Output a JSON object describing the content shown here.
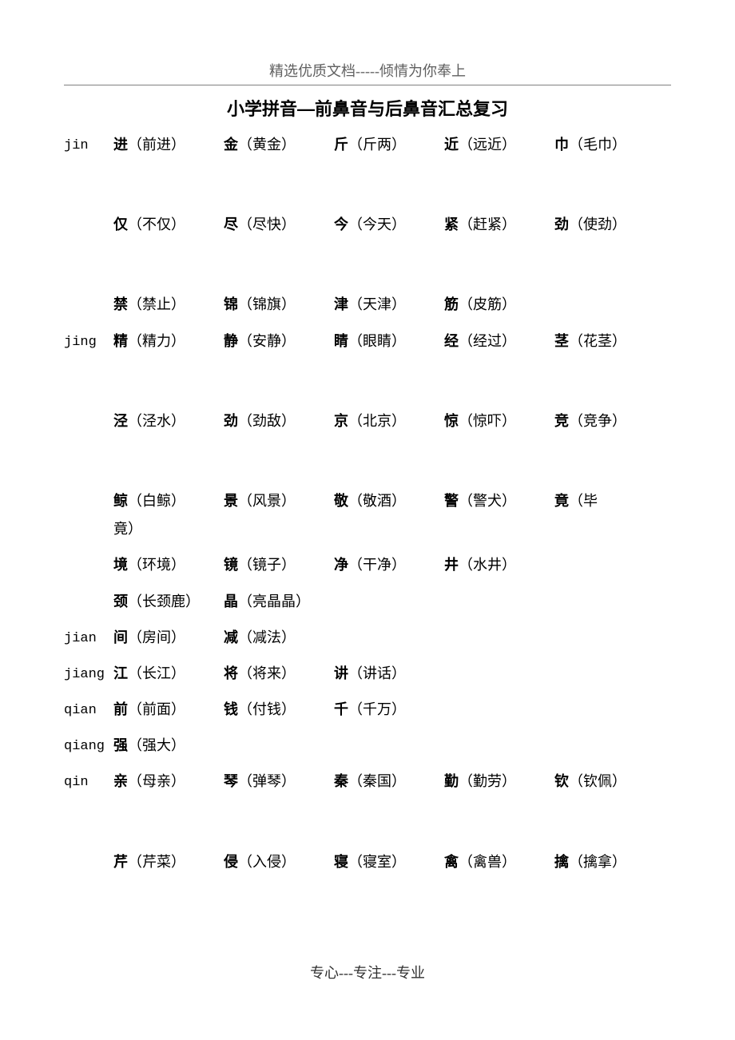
{
  "top_header": "精选优质文档-----倾情为你奉上",
  "title": "小学拼音—前鼻音与后鼻音汇总复习",
  "footer": "专心---专注---专业",
  "rows": [
    {
      "pinyin": "jin",
      "entries": [
        {
          "c": "进",
          "w": "（前进）"
        },
        {
          "c": "金",
          "w": "（黄金）"
        },
        {
          "c": "斤",
          "w": "（斤两）"
        },
        {
          "c": "近",
          "w": "（远近）"
        },
        {
          "c": "巾",
          "w": "（毛巾）"
        }
      ],
      "gap_after": "big"
    },
    {
      "pinyin": "",
      "entries": [
        {
          "c": "仅",
          "w": "（不仅）"
        },
        {
          "c": "尽",
          "w": "（尽快）"
        },
        {
          "c": "今",
          "w": "（今天）"
        },
        {
          "c": "紧",
          "w": "（赶紧）"
        },
        {
          "c": "劲",
          "w": "（使劲）"
        }
      ],
      "gap_after": "big"
    },
    {
      "pinyin": "",
      "entries": [
        {
          "c": "禁",
          "w": "（禁止）"
        },
        {
          "c": "锦",
          "w": "（锦旗）"
        },
        {
          "c": "津",
          "w": "（天津）"
        },
        {
          "c": "筋",
          "w": "（皮筋）"
        }
      ],
      "gap_after": "sm"
    },
    {
      "pinyin": "jing",
      "entries": [
        {
          "c": "精",
          "w": "（精力）"
        },
        {
          "c": "静",
          "w": "（安静）"
        },
        {
          "c": "睛",
          "w": "（眼睛）"
        },
        {
          "c": "经",
          "w": "（经过）"
        },
        {
          "c": "茎",
          "w": "（花茎）"
        }
      ],
      "gap_after": "big"
    },
    {
      "pinyin": "",
      "entries": [
        {
          "c": "泾",
          "w": "（泾水）"
        },
        {
          "c": "劲",
          "w": "（劲敌）"
        },
        {
          "c": "京",
          "w": "（北京）"
        },
        {
          "c": "惊",
          "w": "（惊吓）"
        },
        {
          "c": "竞",
          "w": "（竞争）"
        }
      ],
      "gap_after": "big"
    },
    {
      "pinyin": "",
      "entries": [
        {
          "c": "鲸",
          "w": "（白鲸）"
        },
        {
          "c": "景",
          "w": "（风景）"
        },
        {
          "c": "敬",
          "w": "（敬酒）"
        },
        {
          "c": "警",
          "w": "（警犬）"
        },
        {
          "c": "竟",
          "w": "（毕"
        }
      ],
      "wrap_tail": "竟）",
      "gap_after": "sm"
    },
    {
      "pinyin": "",
      "entries": [
        {
          "c": "境",
          "w": "（环境）"
        },
        {
          "c": "镜",
          "w": "（镜子）"
        },
        {
          "c": "净",
          "w": "（干净）"
        },
        {
          "c": "井",
          "w": "（水井）"
        }
      ],
      "gap_after": "sm"
    },
    {
      "pinyin": "",
      "entries": [
        {
          "c": "颈",
          "w": "（长颈鹿）"
        },
        {
          "c": "晶",
          "w": "（亮晶晶）"
        }
      ],
      "gap_after": "sm"
    },
    {
      "pinyin": "jian",
      "entries": [
        {
          "c": "间",
          "w": "（房间）"
        },
        {
          "c": "减",
          "w": "（减法）"
        }
      ],
      "gap_after": "sm"
    },
    {
      "pinyin": "jiang",
      "entries": [
        {
          "c": "江",
          "w": "（长江）"
        },
        {
          "c": "将",
          "w": "（将来）"
        },
        {
          "c": "讲",
          "w": "（讲话）"
        }
      ],
      "gap_after": "sm"
    },
    {
      "pinyin": "qian",
      "entries": [
        {
          "c": "前",
          "w": "（前面）"
        },
        {
          "c": "钱",
          "w": "（付钱）"
        },
        {
          "c": "千",
          "w": "（千万）"
        }
      ],
      "gap_after": "sm"
    },
    {
      "pinyin": "qiang",
      "entries": [
        {
          "c": "强",
          "w": "（强大）"
        }
      ],
      "gap_after": "sm"
    },
    {
      "pinyin": "qin",
      "entries": [
        {
          "c": "亲",
          "w": "（母亲）"
        },
        {
          "c": "琴",
          "w": "（弹琴）"
        },
        {
          "c": "秦",
          "w": "（秦国）"
        },
        {
          "c": "勤",
          "w": "（勤劳）"
        },
        {
          "c": "钦",
          "w": "（钦佩）"
        }
      ],
      "gap_after": "big"
    },
    {
      "pinyin": "",
      "entries": [
        {
          "c": "芹",
          "w": "（芹菜）"
        },
        {
          "c": "侵",
          "w": "（入侵）"
        },
        {
          "c": "寝",
          "w": "（寝室）"
        },
        {
          "c": "禽",
          "w": "（禽兽）"
        },
        {
          "c": "擒",
          "w": "（擒拿）"
        }
      ],
      "gap_after": "sm"
    }
  ]
}
